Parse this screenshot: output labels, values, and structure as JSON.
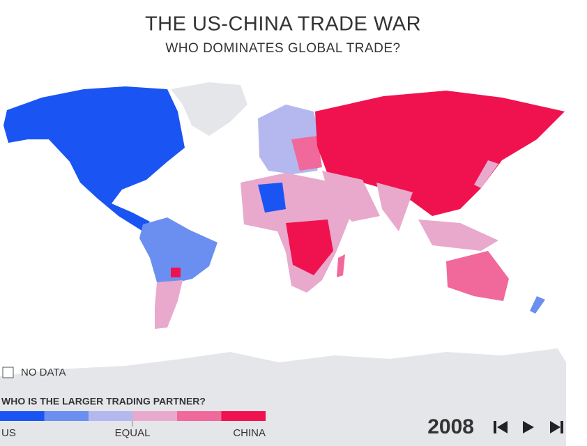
{
  "header": {
    "title": "THE US-CHINA TRADE WAR",
    "subtitle": "WHO DOMINATES GLOBAL TRADE?"
  },
  "legend": {
    "no_data": "NO DATA",
    "title": "WHO IS THE LARGER TRADING PARTNER?",
    "colors": [
      "#1a55f3",
      "#6b8ff0",
      "#b4b8ee",
      "#e8a9cd",
      "#f1689b",
      "#f0124e"
    ],
    "labels": {
      "left": "US",
      "middle": "EQUAL",
      "right": "CHINA"
    }
  },
  "timeline": {
    "year": "2008"
  }
}
